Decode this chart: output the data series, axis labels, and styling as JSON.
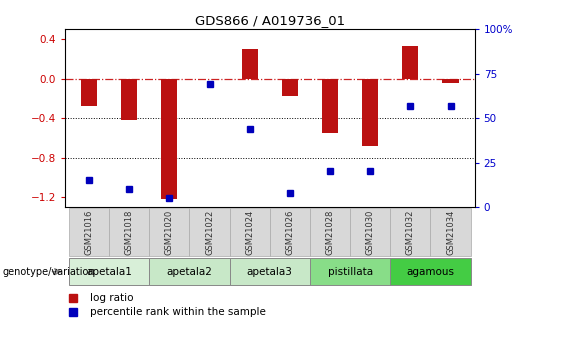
{
  "title": "GDS866 / A019736_01",
  "samples": [
    "GSM21016",
    "GSM21018",
    "GSM21020",
    "GSM21022",
    "GSM21024",
    "GSM21026",
    "GSM21028",
    "GSM21030",
    "GSM21032",
    "GSM21034"
  ],
  "log_ratio": [
    -0.28,
    -0.42,
    -1.22,
    0.0,
    0.3,
    -0.18,
    -0.55,
    -0.68,
    0.33,
    -0.04
  ],
  "percentile_rank": [
    15,
    10,
    5,
    69,
    44,
    8,
    20,
    20,
    57,
    57
  ],
  "ylim_left": [
    -1.3,
    0.5
  ],
  "ylim_right": [
    0,
    100
  ],
  "yticks_left": [
    -1.2,
    -0.8,
    -0.4,
    0.0,
    0.4
  ],
  "yticks_right": [
    0,
    25,
    50,
    75,
    100
  ],
  "group_defs": [
    {
      "label": "apetala1",
      "start": 0,
      "end": 1,
      "color": "#d8efd8"
    },
    {
      "label": "apetala2",
      "start": 2,
      "end": 3,
      "color": "#c8e8c8"
    },
    {
      "label": "apetala3",
      "start": 4,
      "end": 5,
      "color": "#c8e8c8"
    },
    {
      "label": "pistillata",
      "start": 6,
      "end": 7,
      "color": "#88dd88"
    },
    {
      "label": "agamous",
      "start": 8,
      "end": 9,
      "color": "#44cc44"
    }
  ],
  "bar_color": "#bb1111",
  "dot_color": "#0000bb",
  "hline_color": "#cc2222",
  "bg_color": "#ffffff",
  "tick_color_left": "#cc0000",
  "tick_color_right": "#0000cc",
  "sample_box_color": "#d8d8d8",
  "bar_width": 0.4
}
